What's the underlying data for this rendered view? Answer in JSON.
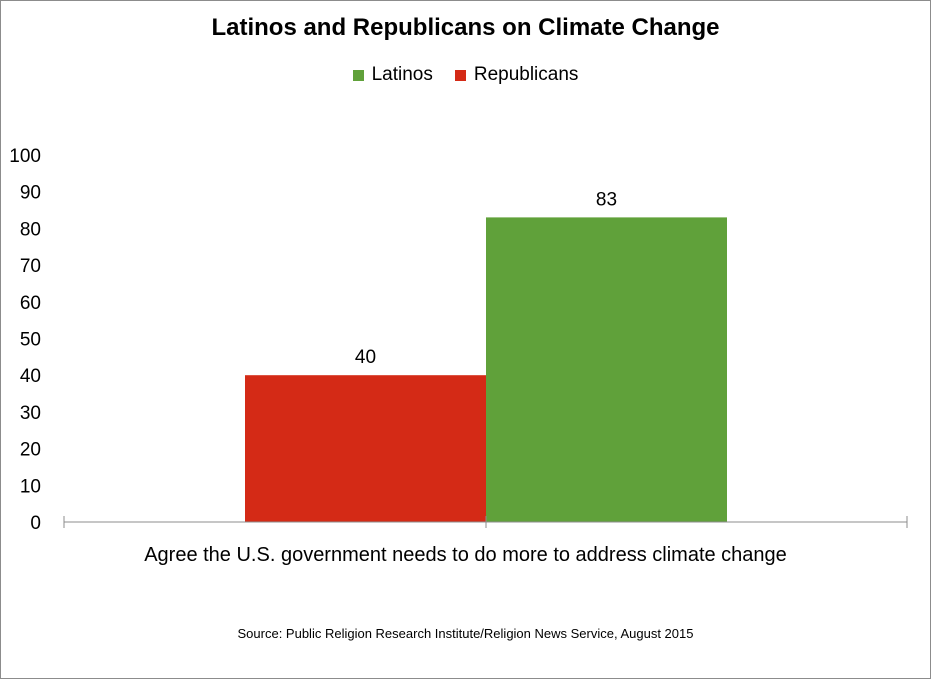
{
  "chart_data": {
    "type": "bar",
    "title": "Latinos and Republicans on Climate Change",
    "categories": [
      "Agree the U.S. government needs to do more to address climate change"
    ],
    "series": [
      {
        "name": "Republicans",
        "values": [
          40
        ],
        "color": "#d42a16"
      },
      {
        "name": "Latinos",
        "values": [
          83
        ],
        "color": "#60a13a"
      }
    ],
    "legend_order": [
      "Latinos",
      "Republicans"
    ],
    "legend_position": "top",
    "ylim": [
      0,
      100
    ],
    "yticks": [
      "0",
      "10",
      "20",
      "30",
      "40",
      "50",
      "60",
      "70",
      "80",
      "90",
      "100"
    ],
    "data_labels": [
      "40",
      "83"
    ],
    "grid": false,
    "xlabel": "",
    "ylabel": ""
  },
  "legend": {
    "latinos": {
      "label": "Latinos",
      "color": "#60a13a"
    },
    "republicans": {
      "label": "Republicans",
      "color": "#d42a16"
    }
  },
  "source": "Source: Public Religion Research Institute/Religion News Service, August 2015"
}
